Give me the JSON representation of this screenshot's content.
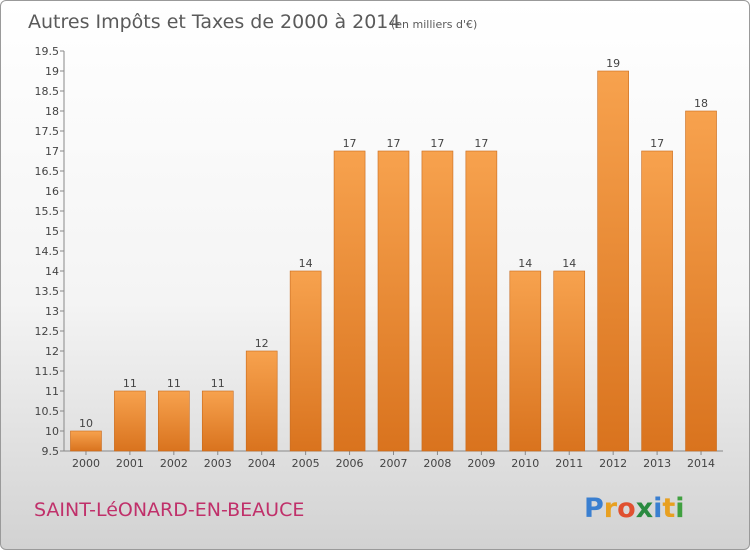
{
  "chart_data": {
    "type": "bar",
    "title": "Autres Impôts et Taxes de 2000 à 2014",
    "subtitle": "(en milliers d'€)",
    "categories": [
      "2000",
      "2001",
      "2002",
      "2003",
      "2004",
      "2005",
      "2006",
      "2007",
      "2008",
      "2009",
      "2010",
      "2011",
      "2012",
      "2013",
      "2014"
    ],
    "values": [
      10,
      11,
      11,
      11,
      12,
      14,
      17,
      17,
      17,
      17,
      14,
      14,
      19,
      17,
      18
    ],
    "ylim": [
      9.5,
      19.5
    ],
    "yticks": [
      "9.5",
      "10",
      "10.5",
      "11",
      "11.5",
      "12",
      "12.5",
      "13",
      "13.5",
      "14",
      "14.5",
      "15",
      "15.5",
      "16",
      "16.5",
      "17",
      "17.5",
      "18",
      "18.5",
      "19",
      "19.5"
    ],
    "grid": false,
    "bar_color_light": "#f7a24e",
    "bar_color_dark": "#d9731e"
  },
  "commune": "SAINT-LéONARD-EN-BEAUCE",
  "brand": {
    "letters": [
      "P",
      "r",
      "o",
      "x",
      "i",
      "t",
      "i"
    ],
    "colors": [
      "#3a7fd0",
      "#e8a020",
      "#e05030",
      "#2a8a40",
      "#3a7fd0",
      "#e8a020",
      "#40a040"
    ]
  }
}
